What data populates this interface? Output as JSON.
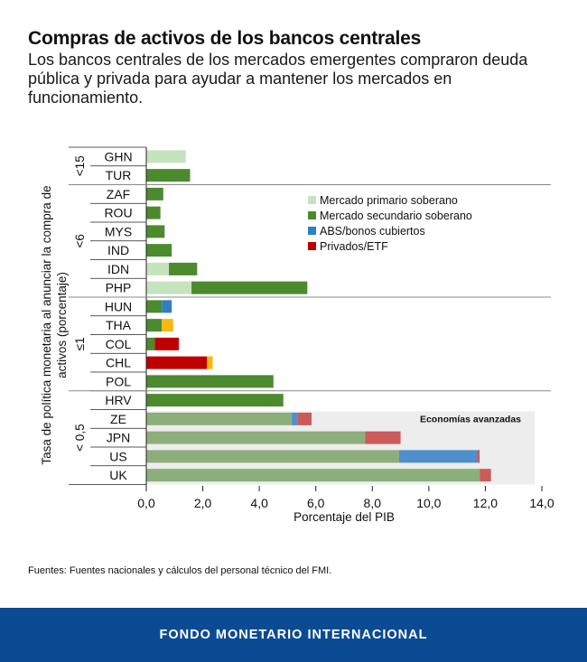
{
  "header": {
    "title": "Compras de activos de los bancos centrales",
    "subtitle": "Los bancos centrales de los mercados emergentes compraron deuda pública y privada para ayudar a mantener los mercados en funcionamiento."
  },
  "chart_data": {
    "type": "bar",
    "orientation": "horizontal",
    "stacked": true,
    "xlabel": "Porcentaje del PIB",
    "ylabel": "Tasa de política monetaria al anunciar la compra de activos (porcentaje)",
    "xlim": [
      0,
      14
    ],
    "xticks": [
      "0,0",
      "2,0",
      "4,0",
      "6,0",
      "8,0",
      "10,0",
      "12,0",
      "14,0"
    ],
    "categories": [
      "GHN",
      "TUR",
      "ZAF",
      "ROU",
      "MYS",
      "IND",
      "IDN",
      "PHP",
      "HUN",
      "THA",
      "COL",
      "CHL",
      "POL",
      "HRV",
      "ZE",
      "JPN",
      "US",
      "UK"
    ],
    "groups": [
      {
        "label": "<15",
        "members": [
          "GHN",
          "TUR"
        ]
      },
      {
        "label": "<6",
        "members": [
          "ZAF",
          "ROU",
          "MYS",
          "IND",
          "IDN",
          "PHP"
        ]
      },
      {
        "label": "≤1",
        "members": [
          "HUN",
          "THA",
          "COL",
          "CHL",
          "POL"
        ]
      },
      {
        "label": "< 0,5",
        "members": [
          "HRV",
          "ZE",
          "JPN",
          "US",
          "UK"
        ]
      }
    ],
    "advanced_label": "Economías avanzadas",
    "advanced_members": [
      "ZE",
      "JPN",
      "US",
      "UK"
    ],
    "series": [
      {
        "name": "Mercado primario soberano",
        "color": "#c5e3bd",
        "values": [
          1.4,
          0,
          0,
          0,
          0,
          0,
          0.8,
          1.6,
          0,
          0,
          0,
          0,
          0,
          0,
          0,
          0,
          0,
          0
        ]
      },
      {
        "name": "Mercado secundario soberano",
        "color": "#4c8a2e",
        "values": [
          0,
          1.55,
          0.6,
          0.5,
          0.65,
          0.9,
          1.0,
          4.1,
          0.55,
          0.55,
          0.3,
          0,
          4.5,
          4.85,
          5.15,
          7.75,
          8.95,
          11.8
        ]
      },
      {
        "name": "ABS/bonos cubiertos",
        "color": "#2f7fc1",
        "values": [
          0,
          0,
          0,
          0,
          0,
          0,
          0,
          0,
          0.35,
          0,
          0,
          0,
          0,
          0,
          0.2,
          0,
          2.75,
          0
        ]
      },
      {
        "name": "Privados/ETF",
        "color": "#c00000",
        "values": [
          0,
          0,
          0,
          0,
          0,
          0,
          0,
          0,
          0,
          0,
          0.85,
          2.15,
          0,
          0,
          0.5,
          1.25,
          0.1,
          0.4
        ]
      },
      {
        "name": "",
        "color": "#f5b90f",
        "values": [
          0,
          0,
          0,
          0,
          0,
          0,
          0,
          0,
          0,
          0.4,
          0,
          0.2,
          0,
          0,
          0,
          0,
          0,
          0
        ]
      }
    ],
    "advanced_colors": {
      "#4c8a2e": "#8cae7b",
      "#2f7fc1": "#4f8fcb",
      "#c00000": "#cc5b5b"
    }
  },
  "source": "Fuentes: Fuentes nacionales y cálculos del personal técnico del FMI.",
  "footer": {
    "org": "FONDO MONETARIO INTERNACIONAL"
  }
}
